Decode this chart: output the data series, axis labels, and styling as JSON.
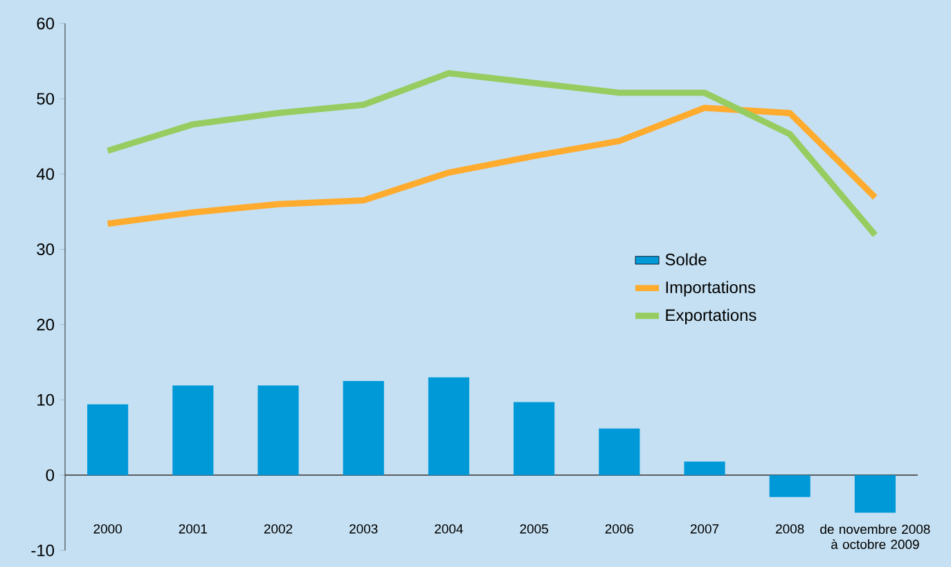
{
  "chart_data": {
    "type": "bar",
    "categories": [
      "2000",
      "2001",
      "2002",
      "2003",
      "2004",
      "2005",
      "2006",
      "2007",
      "2008",
      "de novembre 2008 à octobre 2009"
    ],
    "series": [
      {
        "name": "Solde",
        "color": "#0099d8",
        "values": [
          9.4,
          11.9,
          11.9,
          12.5,
          13.0,
          9.7,
          6.2,
          1.8,
          -2.9,
          -5.0
        ]
      },
      {
        "name": "Importations",
        "type": "line",
        "color": "#ffab2e",
        "values": [
          33.4,
          34.9,
          36.0,
          36.5,
          40.2,
          42.4,
          44.4,
          48.8,
          48.1,
          36.9
        ]
      },
      {
        "name": "Exportations",
        "type": "line",
        "color": "#96cc60",
        "values": [
          43.1,
          46.6,
          48.1,
          49.2,
          53.4,
          52.1,
          50.8,
          50.8,
          45.3,
          31.9
        ]
      }
    ],
    "ylim": [
      -10,
      60
    ],
    "yticks": [
      -10,
      0,
      10,
      20,
      30,
      40,
      50,
      60
    ],
    "legend": "right",
    "marker": "none",
    "line_style": "solid"
  }
}
